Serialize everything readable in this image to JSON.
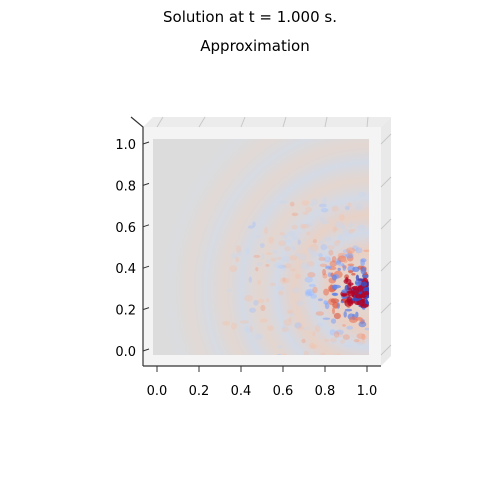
{
  "figure": {
    "suptitle": "Solution at t = 1.000 s.",
    "subtitle": "Approximation"
  },
  "chart_data": {
    "type": "heatmap",
    "title": "Approximation",
    "xlabel": "",
    "ylabel": "",
    "xlim": [
      0.0,
      1.0
    ],
    "ylim": [
      0.0,
      1.0
    ],
    "x_ticks": [
      "0.0",
      "0.2",
      "0.4",
      "0.6",
      "0.8",
      "1.0"
    ],
    "y_ticks": [
      "0.0",
      "0.2",
      "0.4",
      "0.6",
      "0.8",
      "1.0"
    ],
    "colormap": "coolwarm",
    "colors": {
      "background": "#dcdcdc",
      "pane": "#f2f2f2",
      "warm": "#b40426",
      "cool": "#3b4cc0"
    },
    "grid": false,
    "legend": "none",
    "source_point": [
      1.0,
      0.3
    ],
    "field_description": "wave ripples radiating from a source near the right edge at y≈0.3"
  }
}
